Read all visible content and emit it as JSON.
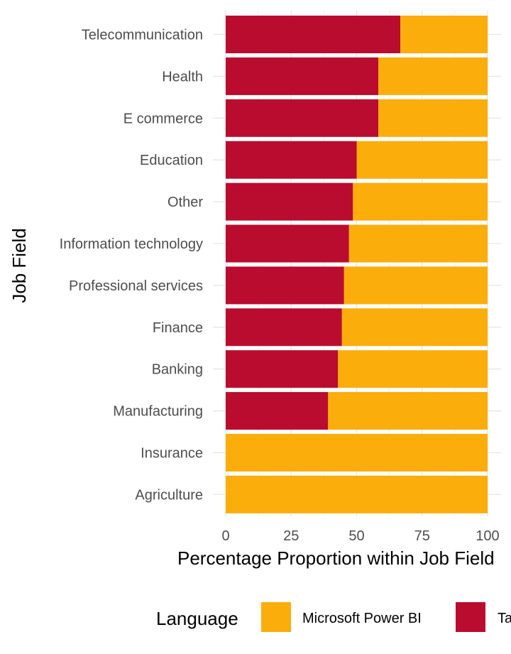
{
  "chart_data": {
    "type": "bar",
    "orientation": "horizontal",
    "stacked": true,
    "xlabel": "Percentage Proportion within Job Field",
    "ylabel": "Job Field",
    "xlim": [
      0,
      100
    ],
    "xticks": [
      "0",
      "25",
      "50",
      "75",
      "100"
    ],
    "grid": true,
    "legend_position": "bottom",
    "legend_title": "Language",
    "categories": [
      "Telecommunication",
      "Health",
      "E commerce",
      "Education",
      "Other",
      "Information technology",
      "Professional services",
      "Finance",
      "Banking",
      "Manufacturing",
      "Insurance",
      "Agriculture"
    ],
    "series": [
      {
        "name": "Tableau",
        "color": "#BA0C2F",
        "values": [
          66.7,
          58.3,
          58.3,
          50.0,
          48.6,
          47.1,
          45.2,
          44.4,
          42.9,
          39.1,
          0,
          0
        ]
      },
      {
        "name": "Microsoft Power BI",
        "color": "#FBAD0B",
        "values": [
          33.3,
          41.7,
          41.7,
          50.0,
          51.4,
          52.9,
          54.8,
          55.6,
          57.1,
          60.9,
          100,
          100
        ]
      }
    ],
    "legend_entries": [
      "Microsoft Power BI",
      "Tableau"
    ]
  }
}
